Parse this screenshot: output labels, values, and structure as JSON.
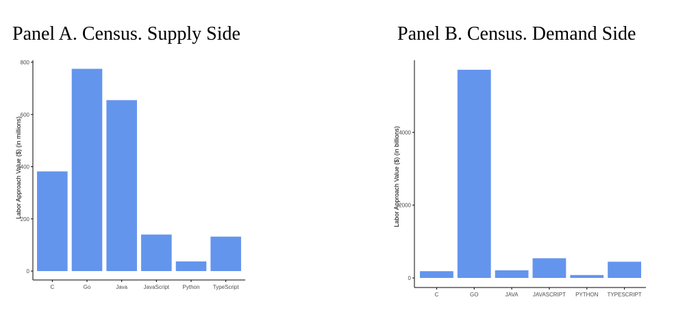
{
  "chart_data": [
    {
      "type": "bar",
      "title": "Panel A. Census. Supply Side",
      "xlabel": "",
      "ylabel": "Labor Approach Value ($) (in millions)",
      "categories": [
        "C",
        "Go",
        "Java",
        "JavaScript",
        "Python",
        "TypeScript"
      ],
      "values": [
        382,
        775,
        655,
        140,
        37,
        132
      ],
      "ylim": [
        0,
        800
      ],
      "yticks": [
        0,
        200,
        400,
        600,
        800
      ],
      "grid": false,
      "bar_color": "#6495ED"
    },
    {
      "type": "bar",
      "title": "Panel B. Census. Demand Side",
      "xlabel": "",
      "ylabel": "Labor Approach Value ($) (in billions)",
      "categories": [
        "C",
        "GO",
        "JAVA",
        "JAVASCRIPT",
        "PYTHON",
        "TYPESCRIPT"
      ],
      "values": [
        185,
        5720,
        210,
        540,
        80,
        445
      ],
      "ylim": [
        0,
        6000
      ],
      "yticks": [
        0,
        2000,
        4000
      ],
      "grid": false,
      "bar_color": "#6495ED"
    }
  ]
}
